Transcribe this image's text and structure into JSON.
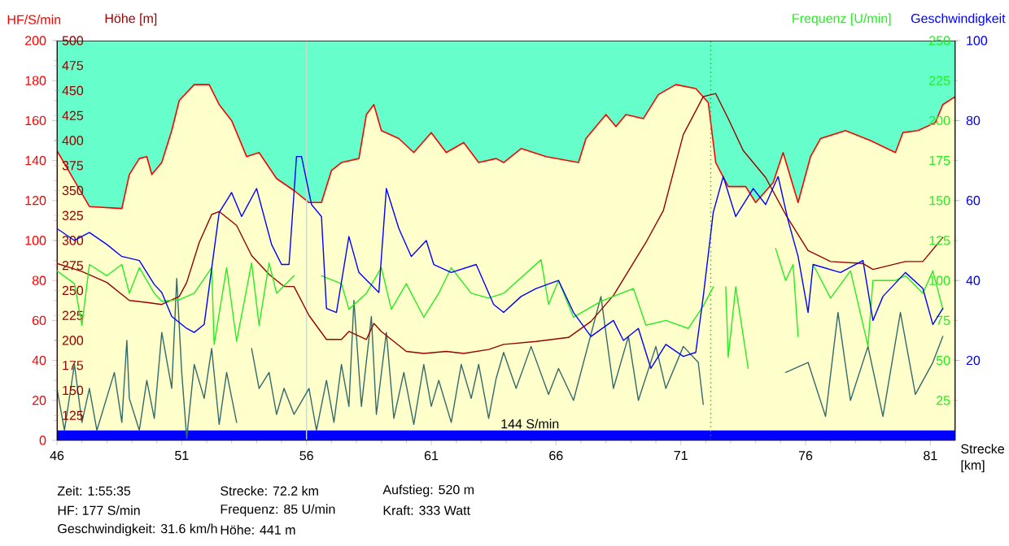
{
  "chart_data": [
    {
      "type": "line",
      "xlabel": "Strecke [km]",
      "ylabel": "HF/S/min",
      "y2label": "Höhe [m]",
      "xlim": [
        46,
        82
      ],
      "xticks": [
        46,
        51,
        56,
        61,
        66,
        71,
        76,
        81
      ],
      "ylim": [
        0,
        200
      ],
      "yticks": [
        0,
        20,
        40,
        60,
        80,
        100,
        120,
        140,
        160,
        180,
        200
      ],
      "y2lim": [
        100,
        500
      ],
      "y2ticks": [
        125,
        150,
        175,
        200,
        225,
        250,
        275,
        300,
        325,
        350,
        375,
        400,
        425,
        450,
        475,
        500
      ],
      "series": [
        {
          "type": "area",
          "color": "#ffffcc",
          "x": [
            46.0,
            47.3,
            48.6,
            48.9,
            49.3,
            49.6,
            49.8,
            50.2,
            50.6,
            50.9,
            51.5,
            52.1,
            52.5,
            53.0,
            53.6,
            54.1,
            54.8,
            55.5,
            56.1,
            56.6,
            57.0,
            57.4,
            58.1,
            58.4,
            58.7,
            59.0,
            59.7,
            60.3,
            61.0,
            61.6,
            62.3,
            62.9,
            63.6,
            63.9,
            64.6,
            65.6,
            66.9,
            67.2,
            68.0,
            68.4,
            68.8,
            69.5,
            70.1,
            70.8,
            71.6,
            72.1,
            72.4,
            72.9,
            73.6,
            74.0,
            74.7,
            75.1,
            75.7,
            76.2,
            76.6,
            77.6,
            78.6,
            79.6,
            79.9,
            80.5,
            81.2,
            81.5,
            82.0
          ],
          "values": [
            145,
            117,
            116,
            133,
            141,
            142,
            133,
            139,
            155,
            170,
            178,
            178,
            168,
            160,
            142,
            144,
            131,
            125,
            119,
            119,
            135,
            139,
            141,
            163,
            168,
            155,
            151,
            144,
            154,
            144,
            149,
            139,
            141,
            139,
            146,
            142,
            139,
            151,
            163,
            157,
            163,
            161,
            173,
            178,
            176,
            169,
            139,
            127,
            127,
            119,
            129,
            144,
            119,
            142,
            151,
            155,
            150,
            144,
            154,
            155,
            159,
            168,
            172
          ]
        },
        {
          "color": "#336b6b",
          "x": [
            46.0,
            46.3,
            46.7,
            47.0,
            47.3,
            47.6,
            48.3,
            48.6,
            48.8,
            48.9,
            49.3,
            49.6,
            49.9,
            50.2,
            50.6,
            50.8,
            51.0,
            51.2,
            51.5,
            51.9,
            52.2,
            52.5,
            52.8,
            53.2,
            53.5,
            53.8,
            54.1,
            54.5,
            54.8,
            55.1,
            55.5,
            56.1,
            56.4,
            56.8,
            57.1,
            57.4,
            57.7,
            57.9,
            58.2,
            58.6,
            58.8,
            59.2,
            59.5,
            59.9,
            60.3,
            60.7,
            61.0,
            61.3,
            61.8,
            62.2,
            62.6,
            62.9,
            63.3,
            63.6,
            63.9,
            64.4,
            65.0,
            65.7,
            66.1,
            66.7,
            67.8,
            68.3,
            68.9,
            69.3,
            70.0,
            70.4,
            71.1,
            71.7,
            71.9,
            72.5,
            75.2,
            76.1,
            76.8,
            77.3,
            77.8,
            78.5,
            79.1,
            79.8,
            80.4,
            81.1,
            81.5
          ],
          "values": [
            26,
            5,
            38,
            9,
            26,
            5,
            34,
            9,
            50,
            21,
            5,
            30,
            11,
            54,
            26,
            81,
            34,
            1,
            38,
            21,
            46,
            8,
            34,
            9,
            null,
            46,
            26,
            34,
            13,
            26,
            13,
            26,
            5,
            30,
            9,
            38,
            17,
            70,
            17,
            62,
            13,
            54,
            11,
            34,
            8,
            38,
            17,
            30,
            9,
            38,
            21,
            38,
            11,
            31,
            44,
            26,
            47,
            23,
            36,
            20,
            72,
            26,
            52,
            20,
            47,
            26,
            47,
            39,
            18,
            null,
            34,
            39,
            12,
            64,
            20,
            47,
            12,
            64,
            23,
            39,
            52
          ]
        },
        {
          "axis": "y2",
          "color": "#990000",
          "x": [
            46.0,
            47.0,
            48.0,
            48.9,
            49.6,
            50.2,
            50.9,
            51.2,
            51.7,
            52.2,
            52.5,
            53.2,
            53.8,
            54.5,
            55.1,
            55.5,
            56.1,
            56.8,
            57.4,
            57.7,
            58.4,
            58.7,
            59.0,
            60.0,
            60.7,
            61.6,
            62.3,
            63.3,
            63.9,
            65.2,
            66.5,
            67.4,
            68.3,
            69.6,
            70.3,
            71.1,
            71.9,
            72.4,
            72.9,
            73.5,
            74.4,
            75.2,
            76.1,
            77.0,
            78.3,
            78.7,
            80.0,
            80.7,
            81.5
          ],
          "values": [
            277,
            269,
            258,
            240,
            238,
            236,
            244,
            258,
            298,
            326,
            329,
            315,
            285,
            266,
            254,
            254,
            225,
            201,
            201,
            209,
            201,
            217,
            209,
            189,
            187,
            189,
            187,
            191,
            196,
            199,
            203,
            219,
            245,
            298,
            330,
            406,
            444,
            447,
            422,
            390,
            363,
            326,
            290,
            279,
            277,
            271,
            279,
            279,
            303
          ]
        }
      ],
      "ref_lines": [
        {
          "axis": "x",
          "value": 72.2,
          "color": "#00cc00",
          "line_style": "dotted"
        },
        {
          "axis": "x",
          "value": 56,
          "color": "#c8dcc8",
          "line_style": "solid"
        }
      ],
      "bands": [
        {
          "axis": "y",
          "from": 0,
          "to": 5,
          "color": "#0000ff"
        }
      ],
      "annotations": [
        "Zeit: 1:55:35",
        "Strecke: 72.2 km",
        "Aufstieg: 520 m",
        "HF: 177 S/min",
        "Frequenz: 85 U/min",
        "Kraft: 333 Watt",
        "Geschwindigkeit: 31.6 km/h",
        "Höhe: 441 m",
        {
          "text": "144 S/min",
          "x": 63.7,
          "y": 5
        }
      ]
    },
    {
      "type": "line",
      "tick_labels": "y",
      "ylabel": "Frequenz [U/min]",
      "y2label": "Geschwindigkeit",
      "xlim": [
        46,
        82
      ],
      "ylim": [
        0,
        250
      ],
      "yticks": [
        25,
        50,
        75,
        100,
        125,
        150,
        175,
        200,
        225,
        250
      ],
      "y2lim": [
        0,
        100
      ],
      "y2ticks": [
        20,
        40,
        60,
        80,
        100
      ],
      "series": [
        {
          "color": "#22ee22",
          "x": [
            46.0,
            46.7,
            47.0,
            47.3,
            48.0,
            48.6,
            48.9,
            49.3,
            49.9,
            50.2,
            50.9,
            51.5,
            52.2,
            52.3,
            52.8,
            53.2,
            53.8,
            54.1,
            54.5,
            54.8,
            55.5,
            56.0,
            56.6,
            57.4,
            57.7,
            58.4,
            59.0,
            59.4,
            60.0,
            60.7,
            61.3,
            61.8,
            62.6,
            63.3,
            63.9,
            65.4,
            65.7,
            66.1,
            66.7,
            67.8,
            69.1,
            69.6,
            70.4,
            71.3,
            71.9,
            72.3,
            72.6,
            72.8,
            72.9,
            73.2,
            73.7,
            74.2,
            74.8,
            75.2,
            75.5,
            75.7,
            76.0,
            76.3,
            77.0,
            77.8,
            78.5,
            78.7,
            79.6,
            80.0,
            80.7,
            81.1,
            81.5
          ],
          "values": [
            106,
            98,
            72,
            110,
            103,
            110,
            92,
            108,
            92,
            87,
            88,
            92,
            108,
            60,
            108,
            62,
            111,
            72,
            111,
            92,
            103,
            null,
            103,
            98,
            82,
            92,
            108,
            82,
            98,
            77,
            92,
            108,
            92,
            89,
            92,
            113,
            85,
            100,
            77,
            87,
            95,
            72,
            75,
            70,
            84,
            96,
            null,
            96,
            52,
            96,
            45,
            null,
            120,
            100,
            110,
            65,
            null,
            110,
            89,
            106,
            59,
            100,
            100,
            103,
            92,
            106,
            82
          ]
        },
        {
          "axis": "y2",
          "color": "#0000ff",
          "x": [
            46.0,
            46.7,
            47.3,
            48.0,
            48.6,
            49.3,
            49.9,
            50.2,
            50.6,
            51.2,
            51.5,
            51.9,
            52.5,
            52.8,
            53.0,
            53.4,
            54.0,
            54.6,
            55.0,
            55.3,
            55.6,
            55.8,
            56.2,
            56.6,
            56.8,
            57.2,
            57.7,
            58.1,
            58.9,
            59.2,
            59.7,
            60.2,
            60.8,
            61.1,
            61.8,
            62.8,
            63.5,
            63.9,
            64.6,
            65.2,
            66.1,
            66.7,
            67.4,
            68.3,
            68.7,
            69.3,
            69.8,
            70.4,
            71.1,
            71.6,
            71.9,
            72.3,
            72.7,
            73.2,
            73.6,
            73.9,
            74.4,
            74.9,
            75.3,
            75.7,
            76.1,
            76.3,
            77.4,
            78.3,
            78.7,
            79.1,
            80.0,
            80.7,
            81.1,
            81.5
          ],
          "values": [
            53,
            50,
            52,
            49,
            46,
            45,
            39,
            37,
            31,
            28,
            27,
            29,
            57,
            60,
            62,
            56,
            63,
            49,
            44,
            44,
            71,
            71,
            59,
            56,
            33,
            32,
            51,
            42,
            37,
            63,
            53,
            46,
            50,
            44,
            42,
            44,
            34,
            32,
            36,
            38,
            40,
            32,
            26,
            30,
            25,
            28,
            18,
            24,
            21,
            22,
            36,
            57,
            66,
            56,
            60,
            63,
            59,
            66,
            55,
            46,
            32,
            44,
            42,
            45,
            30,
            36,
            42,
            38,
            29,
            33
          ]
        }
      ]
    }
  ]
}
